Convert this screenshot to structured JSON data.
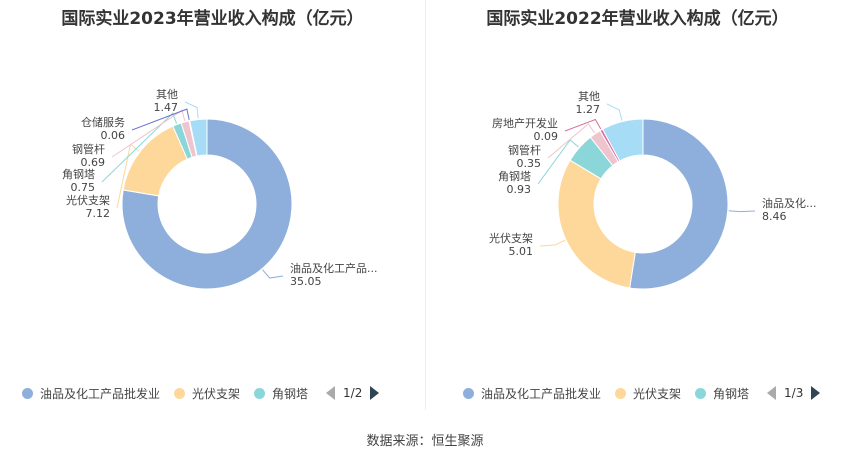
{
  "chart_data": [
    {
      "type": "pie",
      "variant": "donut",
      "title": "国际实业2023年营业收入构成（亿元）",
      "slices": [
        {
          "label": "油品及化工产品批发业",
          "short": "油品及化工产品...",
          "value": 35.05,
          "display": "35.05",
          "color": "#8eafdc"
        },
        {
          "label": "光伏支架",
          "short": "光伏支架",
          "value": 7.12,
          "display": "7.12",
          "color": "#fdd89a"
        },
        {
          "label": "角钢塔",
          "short": "角钢塔",
          "value": 0.75,
          "display": "0.75",
          "color": "#8ad6d9"
        },
        {
          "label": "钢管杆",
          "short": "钢管杆",
          "value": 0.69,
          "display": "0.69",
          "color": "#eec5cc"
        },
        {
          "label": "仓储服务",
          "short": "仓储服务",
          "value": 0.06,
          "display": "0.06",
          "color": "#6c74d0"
        },
        {
          "label": "其他",
          "short": "其他",
          "value": 1.47,
          "display": "1.47",
          "color": "#a7dcf7"
        }
      ],
      "legend": {
        "items": [
          "油品及化工产品批发业",
          "光伏支架",
          "角钢塔"
        ],
        "colors": [
          "#8eafdc",
          "#fdd89a",
          "#8ad6d9"
        ],
        "page": "1/2"
      }
    },
    {
      "type": "pie",
      "variant": "donut",
      "title": "国际实业2022年营业收入构成（亿元）",
      "slices": [
        {
          "label": "油品及化工产品批发业",
          "short": "油品及化...",
          "value": 8.46,
          "display": "8.46",
          "color": "#8eafdc"
        },
        {
          "label": "光伏支架",
          "short": "光伏支架",
          "value": 5.01,
          "display": "5.01",
          "color": "#fdd89a"
        },
        {
          "label": "角钢塔",
          "short": "角钢塔",
          "value": 0.93,
          "display": "0.93",
          "color": "#8ad6d9"
        },
        {
          "label": "钢管杆",
          "short": "钢管杆",
          "value": 0.35,
          "display": "0.35",
          "color": "#eec5cc"
        },
        {
          "label": "房地产开发业",
          "short": "房地产开发业",
          "value": 0.09,
          "display": "0.09",
          "color": "#d96f9e"
        },
        {
          "label": "其他",
          "short": "其他",
          "value": 1.27,
          "display": "1.27",
          "color": "#a7dcf7"
        }
      ],
      "legend": {
        "items": [
          "油品及化工产品批发业",
          "光伏支架",
          "角钢塔"
        ],
        "colors": [
          "#8eafdc",
          "#fdd89a",
          "#8ad6d9"
        ],
        "page": "1/3"
      }
    }
  ],
  "footer": {
    "source": "数据来源：恒生聚源"
  }
}
